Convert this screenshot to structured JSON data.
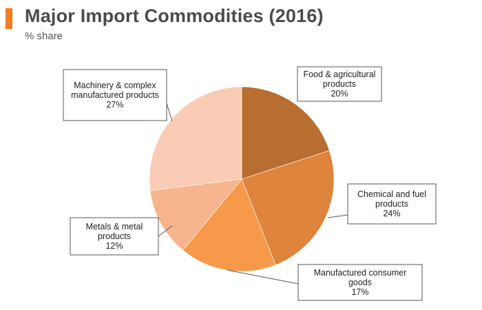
{
  "header": {
    "title": "Major Import Commodities (2016)",
    "subtitle": "% share",
    "accent_color": "#f47b20"
  },
  "chart_data": {
    "type": "pie",
    "title": "Major Import Commodities (2016)",
    "subtitle": "% share",
    "unit": "%",
    "slices": [
      {
        "label_lines": [
          "Food & agricultural",
          "products"
        ],
        "value_label": "20%",
        "value": 20,
        "color": "#b86e30"
      },
      {
        "label_lines": [
          "Chemical and fuel",
          "products"
        ],
        "value_label": "24%",
        "value": 24,
        "color": "#de843d"
      },
      {
        "label_lines": [
          "Manufactured consumer",
          "goods"
        ],
        "value_label": "17%",
        "value": 17,
        "color": "#f7994a"
      },
      {
        "label_lines": [
          "Metals & metal",
          "products"
        ],
        "value_label": "12%",
        "value": 12,
        "color": "#f8b48c"
      },
      {
        "label_lines": [
          "Machinery & complex",
          "manufactured products"
        ],
        "value_label": "27%",
        "value": 27,
        "color": "#fbccb5"
      }
    ]
  }
}
